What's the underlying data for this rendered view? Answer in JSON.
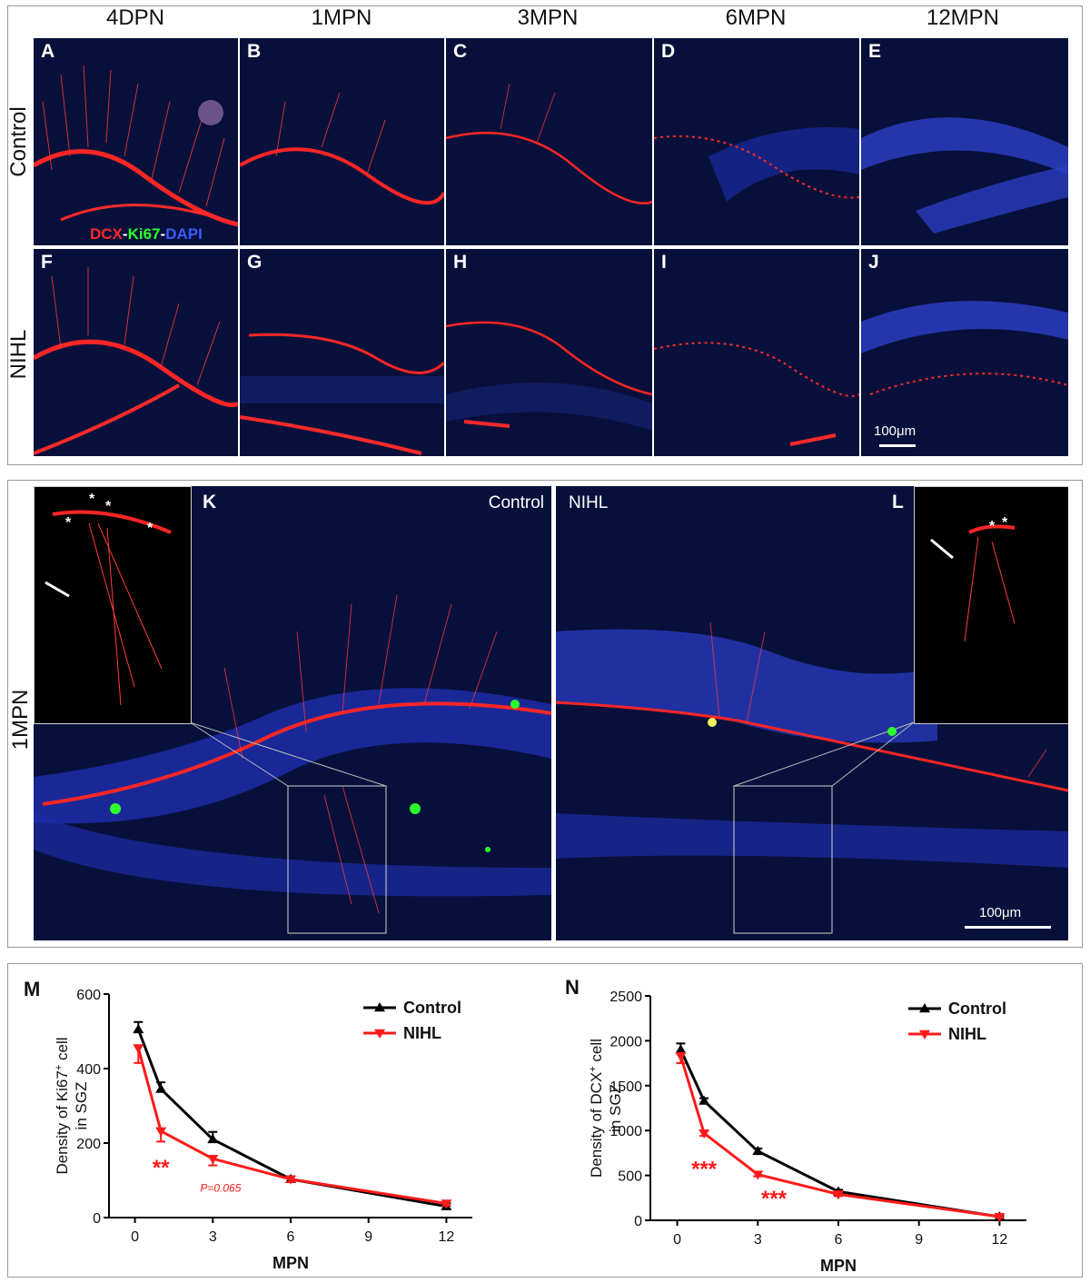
{
  "top_figure": {
    "columns": [
      "4DPN",
      "1MPN",
      "3MPN",
      "6MPN",
      "12MPN"
    ],
    "rows": [
      "Control",
      "NIHL"
    ],
    "panel_letters": [
      "A",
      "B",
      "C",
      "D",
      "E",
      "F",
      "G",
      "H",
      "I",
      "J"
    ],
    "stain_legend": {
      "dcx": "DCX",
      "sep1": "-",
      "ki67": "Ki67",
      "sep2": "-",
      "dapi": "DAPI"
    },
    "scale_label": "100μm"
  },
  "mid_figure": {
    "row_label": "1MPN",
    "left_letter": "K",
    "left_label": "Control",
    "right_letter": "L",
    "right_label": "NIHL",
    "scale_label": "100μm"
  },
  "colors": {
    "control": "#000000",
    "nihl": "#ff1a1a",
    "dcx": "#ff2a2a",
    "ki67": "#2cff2c",
    "dapi": "#3a5cff"
  },
  "chart_data": [
    {
      "panel_letter": "M",
      "type": "line",
      "xlabel": "MPN",
      "ylabel_line1": "Density of Ki67",
      "ylabel_sup": "+",
      "ylabel_tail": " cell",
      "ylabel_line2": "in SGZ",
      "xlim": [
        -1,
        13
      ],
      "ylim": [
        0,
        600
      ],
      "xticks": [
        "0",
        "3",
        "6",
        "9",
        "12"
      ],
      "yticks": [
        "0",
        "200",
        "400",
        "600"
      ],
      "legend_position": "top-right",
      "series": [
        {
          "name": "Control",
          "x": [
            0.13,
            1,
            3,
            6,
            12
          ],
          "y": [
            505,
            345,
            210,
            103,
            30
          ],
          "err": [
            20,
            18,
            20,
            8,
            8
          ]
        },
        {
          "name": "NIHL",
          "x": [
            0.13,
            1,
            3,
            6,
            12
          ],
          "y": [
            455,
            232,
            158,
            103,
            38
          ],
          "err": [
            40,
            28,
            18,
            8,
            6
          ]
        }
      ],
      "annotations": [
        {
          "text": "**",
          "x": 1,
          "y": 115,
          "style": "large"
        },
        {
          "text": "P=0.065",
          "x": 3.3,
          "y": 70,
          "style": "small"
        }
      ]
    },
    {
      "panel_letter": "N",
      "type": "line",
      "xlabel": "MPN",
      "ylabel_line1": "Density of DCX",
      "ylabel_sup": "+",
      "ylabel_tail": " cell",
      "ylabel_line2": "in SGZ",
      "xlim": [
        -1,
        13
      ],
      "ylim": [
        0,
        2500
      ],
      "xticks": [
        "0",
        "3",
        "6",
        "9",
        "12"
      ],
      "yticks": [
        "0",
        "500",
        "1000",
        "1500",
        "2000",
        "2500"
      ],
      "legend_position": "top-right",
      "series": [
        {
          "name": "Control",
          "x": [
            0.13,
            1,
            3,
            6,
            12
          ],
          "y": [
            1900,
            1330,
            770,
            320,
            40
          ],
          "err": [
            70,
            30,
            30,
            20,
            10
          ]
        },
        {
          "name": "NIHL",
          "x": [
            0.13,
            1,
            3,
            6,
            12
          ],
          "y": [
            1830,
            970,
            510,
            290,
            40
          ],
          "err": [
            80,
            30,
            20,
            20,
            10
          ]
        }
      ],
      "annotations": [
        {
          "text": "***",
          "x": 1,
          "y": 490,
          "style": "large"
        },
        {
          "text": "***",
          "x": 3.6,
          "y": 160,
          "style": "large"
        }
      ]
    }
  ]
}
